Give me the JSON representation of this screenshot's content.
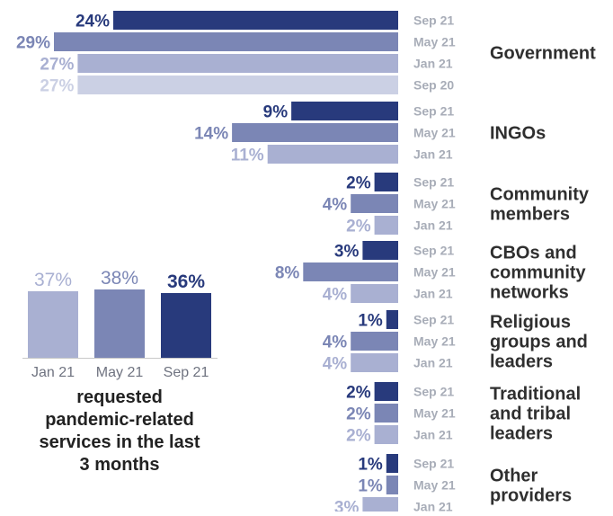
{
  "colors": {
    "Sep 21": "#283a7c",
    "May 21": "#7b86b5",
    "Jan 21": "#a9b0d2",
    "Sep 20": "#cbd0e4",
    "period_text": "#a8adb8",
    "category_text": "#2f2f2f",
    "caption_text": "#222222"
  },
  "chart_data": [
    {
      "type": "bar",
      "orientation": "horizontal",
      "groups": [
        {
          "category": "Government",
          "label_lines": [
            "Government"
          ],
          "bars": [
            {
              "period": "Sep 21",
              "value": 24,
              "label": "24%"
            },
            {
              "period": "May 21",
              "value": 29,
              "label": "29%"
            },
            {
              "period": "Jan 21",
              "value": 27,
              "label": "27%"
            },
            {
              "period": "Sep 20",
              "value": 27,
              "label": "27%"
            }
          ]
        },
        {
          "category": "INGOs",
          "label_lines": [
            "INGOs"
          ],
          "bars": [
            {
              "period": "Sep 21",
              "value": 9,
              "label": "9%"
            },
            {
              "period": "May 21",
              "value": 14,
              "label": "14%"
            },
            {
              "period": "Jan 21",
              "value": 11,
              "label": "11%"
            }
          ]
        },
        {
          "category": "Community members",
          "label_lines": [
            "Community",
            "members"
          ],
          "bars": [
            {
              "period": "Sep 21",
              "value": 2,
              "label": "2%"
            },
            {
              "period": "May 21",
              "value": 4,
              "label": "4%"
            },
            {
              "period": "Jan 21",
              "value": 2,
              "label": "2%"
            }
          ]
        },
        {
          "category": "CBOs and community networks",
          "label_lines": [
            "CBOs and",
            "community",
            "networks"
          ],
          "bars": [
            {
              "period": "Sep 21",
              "value": 3,
              "label": "3%"
            },
            {
              "period": "May 21",
              "value": 8,
              "label": "8%"
            },
            {
              "period": "Jan 21",
              "value": 4,
              "label": "4%"
            }
          ]
        },
        {
          "category": "Religious groups and leaders",
          "label_lines": [
            "Religious",
            "groups and",
            "leaders"
          ],
          "bars": [
            {
              "period": "Sep 21",
              "value": 1,
              "label": "1%"
            },
            {
              "period": "May 21",
              "value": 4,
              "label": "4%"
            },
            {
              "period": "Jan 21",
              "value": 4,
              "label": "4%"
            }
          ]
        },
        {
          "category": "Traditional and tribal leaders",
          "label_lines": [
            "Traditional",
            "and tribal",
            "leaders"
          ],
          "bars": [
            {
              "period": "Sep 21",
              "value": 2,
              "label": "2%"
            },
            {
              "period": "May 21",
              "value": 2,
              "label": "2%"
            },
            {
              "period": "Jan 21",
              "value": 2,
              "label": "2%"
            }
          ]
        },
        {
          "category": "Other providers",
          "label_lines": [
            "Other",
            "providers"
          ],
          "bars": [
            {
              "period": "Sep 21",
              "value": 1,
              "label": "1%"
            },
            {
              "period": "May 21",
              "value": 1,
              "label": "1%"
            },
            {
              "period": "Jan 21",
              "value": 3,
              "label": "3%"
            }
          ]
        }
      ]
    },
    {
      "type": "bar",
      "orientation": "vertical",
      "categories": [
        "Jan 21",
        "May 21",
        "Sep 21"
      ],
      "values": [
        37,
        38,
        36
      ],
      "value_labels": [
        "37%",
        "38%",
        "36%"
      ],
      "caption_lines": [
        "requested",
        "pandemic-related",
        "services in the last",
        "3 months"
      ]
    }
  ]
}
